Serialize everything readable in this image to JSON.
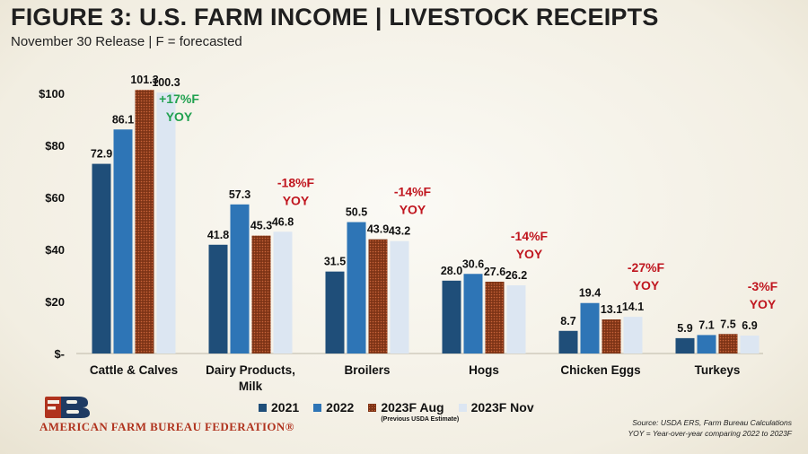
{
  "header": {
    "title": "FIGURE 3: U.S. FARM INCOME | LIVESTOCK RECEIPTS",
    "subtitle": "November 30 Release | F = forecasted"
  },
  "chart_data": {
    "type": "bar",
    "categories": [
      "Cattle & Calves",
      "Dairy Products, Milk",
      "Broilers",
      "Hogs",
      "Chicken Eggs",
      "Turkeys"
    ],
    "series": [
      {
        "name": "2021",
        "color": "#1f4e79",
        "pattern": "solid",
        "values": [
          72.9,
          41.8,
          31.5,
          28.0,
          8.7,
          5.9
        ],
        "labels": [
          "72.9",
          "41.8",
          "31.5",
          "28.0",
          "8.7",
          "5.9"
        ]
      },
      {
        "name": "2022",
        "color": "#2e75b6",
        "pattern": "solid",
        "values": [
          86.1,
          57.3,
          50.5,
          30.6,
          19.4,
          7.1
        ],
        "labels": [
          "86.1",
          "57.3",
          "50.5",
          "30.6",
          "19.4",
          "7.1"
        ]
      },
      {
        "name": "2023F Aug",
        "color": "#8b3a1a",
        "pattern": "dots",
        "values": [
          101.3,
          45.3,
          43.9,
          27.6,
          13.1,
          7.5
        ],
        "labels": [
          "101.3",
          "45.3",
          "43.9",
          "27.6",
          "13.1",
          "7.5"
        ]
      },
      {
        "name": "2023F Nov",
        "color": "#dce6f2",
        "pattern": "solid",
        "values": [
          100.3,
          46.8,
          43.2,
          26.2,
          14.1,
          6.9
        ],
        "labels": [
          "100.3",
          "46.8",
          "43.2",
          "26.2",
          "14.1",
          "6.9"
        ]
      }
    ],
    "yticks": [
      0,
      20,
      40,
      60,
      80,
      100
    ],
    "ytick_labels": [
      "$-",
      "$20",
      "$40",
      "$60",
      "$80",
      "$100"
    ],
    "ylim": [
      0,
      100
    ],
    "annotations": [
      {
        "category": "Cattle & Calves",
        "line1": "+17%F",
        "line2": "YOY",
        "color": "#21a150"
      },
      {
        "category": "Dairy Products, Milk",
        "line1": "-18%F",
        "line2": "YOY",
        "color": "#c0161f"
      },
      {
        "category": "Broilers",
        "line1": "-14%F",
        "line2": "YOY",
        "color": "#c0161f"
      },
      {
        "category": "Hogs",
        "line1": "-14%F",
        "line2": "YOY",
        "color": "#c0161f"
      },
      {
        "category": "Chicken Eggs",
        "line1": "-27%F",
        "line2": "YOY",
        "color": "#c0161f"
      },
      {
        "category": "Turkeys",
        "line1": "-3%F",
        "line2": "YOY",
        "color": "#c0161f"
      }
    ],
    "legend_position": "bottom",
    "legend_note": "(Previous USDA Estimate)"
  },
  "footer": {
    "brand": "AMERICAN FARM BUREAU FEDERATION®",
    "source_line1": "Source: USDA ERS, Farm Bureau Calculations",
    "source_line2": "YOY = Year-over-year comparing 2022 to 2023F"
  }
}
